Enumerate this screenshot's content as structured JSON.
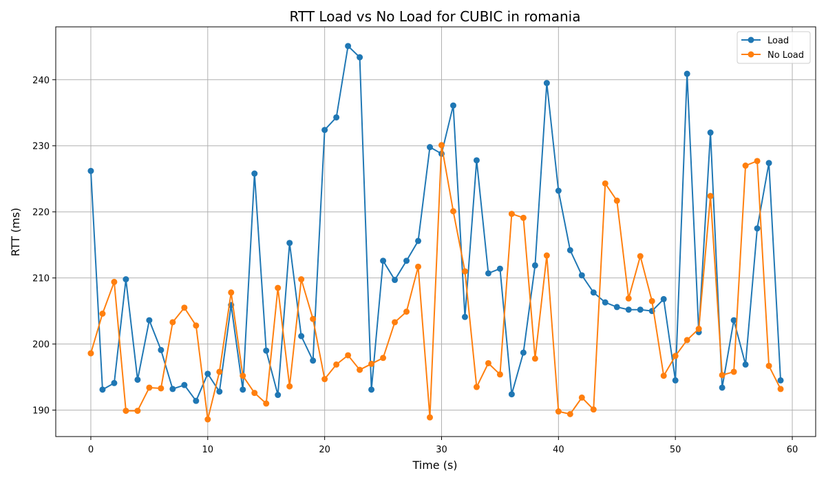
{
  "chart_data": {
    "type": "line",
    "title": "RTT Load vs No Load for CUBIC in romania",
    "xlabel": "Time (s)",
    "ylabel": "RTT (ms)",
    "xlim": [
      -3,
      62
    ],
    "ylim": [
      186,
      248
    ],
    "xticks": [
      0,
      10,
      20,
      30,
      40,
      50,
      60
    ],
    "yticks": [
      190,
      200,
      210,
      220,
      230,
      240
    ],
    "grid": true,
    "legend_position": "top-right",
    "x": [
      0,
      1,
      2,
      3,
      4,
      5,
      6,
      7,
      8,
      9,
      10,
      11,
      12,
      13,
      14,
      15,
      16,
      17,
      18,
      19,
      20,
      21,
      22,
      23,
      24,
      25,
      26,
      27,
      28,
      29,
      30,
      31,
      32,
      33,
      34,
      35,
      36,
      37,
      38,
      39,
      40,
      41,
      42,
      43,
      44,
      45,
      46,
      47,
      48,
      49,
      50,
      51,
      52,
      53,
      54,
      55,
      56,
      57,
      58,
      59
    ],
    "series": [
      {
        "name": "Load",
        "color": "#1f77b4",
        "values": [
          226.2,
          193.1,
          194.1,
          209.8,
          194.6,
          203.6,
          199.1,
          193.2,
          193.8,
          191.4,
          195.5,
          192.8,
          205.9,
          193.1,
          225.8,
          199.0,
          192.3,
          215.3,
          201.2,
          197.5,
          232.4,
          234.3,
          245.1,
          243.4,
          193.1,
          212.6,
          209.7,
          212.6,
          215.6,
          229.8,
          228.8,
          236.1,
          204.1,
          227.8,
          210.7,
          211.4,
          192.4,
          198.7,
          211.9,
          239.5,
          223.2,
          214.2,
          210.4,
          207.8,
          206.3,
          205.6,
          205.2,
          205.2,
          205.0,
          206.8,
          194.5,
          240.9,
          201.8,
          232.0,
          193.4,
          203.6,
          196.9,
          217.5,
          227.4,
          194.5
        ]
      },
      {
        "name": "No Load",
        "color": "#ff7f0e",
        "values": [
          198.6,
          204.6,
          209.4,
          189.9,
          189.9,
          193.4,
          193.3,
          203.3,
          205.5,
          202.8,
          188.6,
          195.8,
          207.8,
          195.2,
          192.6,
          191.0,
          208.5,
          193.6,
          209.8,
          203.8,
          194.7,
          196.9,
          198.3,
          196.1,
          197.0,
          197.9,
          203.3,
          204.9,
          211.7,
          188.9,
          230.1,
          220.1,
          211.0,
          193.5,
          197.1,
          195.4,
          219.7,
          219.1,
          197.8,
          213.4,
          189.8,
          189.4,
          191.9,
          190.1,
          224.3,
          221.7,
          206.9,
          213.3,
          206.5,
          195.2,
          198.2,
          200.6,
          202.3,
          222.4,
          195.3,
          195.8,
          227.0,
          227.7,
          196.7,
          193.2
        ]
      }
    ]
  }
}
